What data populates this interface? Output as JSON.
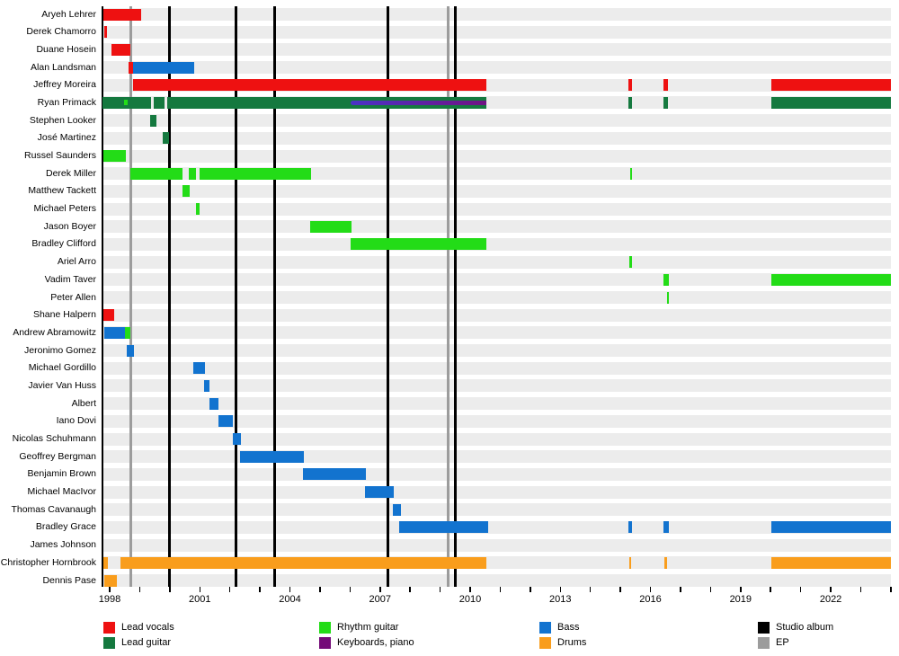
{
  "chart_data": {
    "type": "timeline",
    "title": "",
    "x_axis": {
      "labeled_years": [
        1998,
        2001,
        2004,
        2007,
        2010,
        2013,
        2016,
        2019,
        2022
      ],
      "minor_tick_start": 1998,
      "minor_tick_end": 2024,
      "label_every": 3,
      "range": [
        1997.75,
        2024.05
      ]
    },
    "event_lines": {
      "studio_albums": [
        2000.0,
        2002.19,
        2003.5,
        2007.25,
        2009.52
      ],
      "eps": [
        1998.69,
        2009.28
      ]
    },
    "members": [
      {
        "name": "Aryeh Lehrer",
        "bars": [
          {
            "role": "lead_vocals",
            "start": 1997.79,
            "end": 1999.05
          }
        ]
      },
      {
        "name": "Derek Chamorro",
        "bars": [
          {
            "role": "lead_vocals",
            "start": 1997.82,
            "end": 1997.92
          }
        ]
      },
      {
        "name": "Duane Hosein",
        "bars": [
          {
            "role": "lead_vocals",
            "start": 1998.06,
            "end": 1998.69
          }
        ]
      },
      {
        "name": "Alan Landsman",
        "bars": [
          {
            "role": "lead_vocals",
            "start": 1998.62,
            "end": 1998.78
          },
          {
            "role": "bass",
            "start": 1998.78,
            "end": 2000.81
          }
        ]
      },
      {
        "name": "Jeffrey Moreira",
        "bars": [
          {
            "role": "lead_vocals",
            "start": 1998.78,
            "end": 2010.54
          },
          {
            "role": "lead_vocals",
            "start": 2015.27,
            "end": 2015.39
          },
          {
            "role": "lead_vocals",
            "start": 2016.43,
            "end": 2016.58
          },
          {
            "role": "lead_vocals",
            "start": 2020.02,
            "end": 2024.02
          }
        ]
      },
      {
        "name": "Ryan Primack",
        "bars": [
          {
            "role": "lead_guitar",
            "start": 1997.76,
            "end": 1999.38
          },
          {
            "role": "rhythm_guitar",
            "start": 1998.48,
            "end": 1998.6,
            "overlay": "dot"
          },
          {
            "role": "lead_guitar",
            "start": 1999.47,
            "end": 1999.83
          },
          {
            "role": "lead_guitar",
            "start": 1999.92,
            "end": 2010.54
          },
          {
            "role": "keyboards",
            "start": 2006.02,
            "end": 2010.54,
            "overlay": "stripe"
          },
          {
            "role": "lead_guitar",
            "start": 2015.27,
            "end": 2015.39
          },
          {
            "role": "lead_guitar",
            "start": 2016.43,
            "end": 2016.58
          },
          {
            "role": "lead_guitar",
            "start": 2020.02,
            "end": 2024.02
          }
        ]
      },
      {
        "name": "Stephen Looker",
        "bars": [
          {
            "role": "lead_guitar",
            "start": 1999.35,
            "end": 1999.56
          }
        ]
      },
      {
        "name": "José Martinez",
        "bars": [
          {
            "role": "lead_guitar",
            "start": 1999.77,
            "end": 1999.97
          }
        ]
      },
      {
        "name": "Russel Saunders",
        "bars": [
          {
            "role": "rhythm_guitar",
            "start": 1997.79,
            "end": 1998.54
          }
        ]
      },
      {
        "name": "Derek Miller",
        "bars": [
          {
            "role": "rhythm_guitar",
            "start": 1998.69,
            "end": 2000.42
          },
          {
            "role": "rhythm_guitar",
            "start": 2000.63,
            "end": 2000.87
          },
          {
            "role": "rhythm_guitar",
            "start": 2000.99,
            "end": 2004.7
          },
          {
            "role": "rhythm_guitar",
            "start": 2015.33,
            "end": 2015.39
          }
        ]
      },
      {
        "name": "Matthew Tackett",
        "bars": [
          {
            "role": "rhythm_guitar",
            "start": 2000.42,
            "end": 2000.66
          }
        ]
      },
      {
        "name": "Michael Peters",
        "bars": [
          {
            "role": "rhythm_guitar",
            "start": 2000.87,
            "end": 2000.99
          }
        ]
      },
      {
        "name": "Jason Boyer",
        "bars": [
          {
            "role": "rhythm_guitar",
            "start": 2004.67,
            "end": 2006.05
          }
        ]
      },
      {
        "name": "Bradley Clifford",
        "bars": [
          {
            "role": "rhythm_guitar",
            "start": 2006.02,
            "end": 2010.54
          }
        ]
      },
      {
        "name": "Ariel Arro",
        "bars": [
          {
            "role": "rhythm_guitar",
            "start": 2015.3,
            "end": 2015.39
          }
        ]
      },
      {
        "name": "Vadim Taver",
        "bars": [
          {
            "role": "rhythm_guitar",
            "start": 2016.43,
            "end": 2016.61
          },
          {
            "role": "rhythm_guitar",
            "start": 2020.02,
            "end": 2024.02
          }
        ]
      },
      {
        "name": "Peter Allen",
        "bars": [
          {
            "role": "rhythm_guitar",
            "start": 2016.55,
            "end": 2016.6
          }
        ]
      },
      {
        "name": "Shane Halpern",
        "bars": [
          {
            "role": "lead_vocals",
            "start": 1997.79,
            "end": 1998.15
          }
        ]
      },
      {
        "name": "Andrew Abramowitz",
        "bars": [
          {
            "role": "bass",
            "start": 1997.82,
            "end": 1998.51
          },
          {
            "role": "rhythm_guitar",
            "start": 1998.51,
            "end": 1998.69
          }
        ]
      },
      {
        "name": "Jeronimo Gomez",
        "bars": [
          {
            "role": "bass",
            "start": 1998.57,
            "end": 1998.81
          }
        ]
      },
      {
        "name": "Michael Gordillo",
        "bars": [
          {
            "role": "bass",
            "start": 2000.78,
            "end": 2001.17
          }
        ]
      },
      {
        "name": "Javier Van Huss",
        "bars": [
          {
            "role": "bass",
            "start": 2001.14,
            "end": 2001.32
          }
        ]
      },
      {
        "name": "Albert",
        "bars": [
          {
            "role": "bass",
            "start": 2001.32,
            "end": 2001.62
          }
        ]
      },
      {
        "name": "Iano Dovi",
        "bars": [
          {
            "role": "bass",
            "start": 2001.62,
            "end": 2002.1
          }
        ]
      },
      {
        "name": "Nicolas Schuhmann",
        "bars": [
          {
            "role": "bass",
            "start": 2002.1,
            "end": 2002.37
          }
        ]
      },
      {
        "name": "Geoffrey Bergman",
        "bars": [
          {
            "role": "bass",
            "start": 2002.34,
            "end": 2004.46
          }
        ]
      },
      {
        "name": "Benjamin Brown",
        "bars": [
          {
            "role": "bass",
            "start": 2004.43,
            "end": 2006.53
          }
        ]
      },
      {
        "name": "Michael MacIvor",
        "bars": [
          {
            "role": "bass",
            "start": 2006.5,
            "end": 2007.46
          }
        ]
      },
      {
        "name": "Thomas Cavanaugh",
        "bars": [
          {
            "role": "bass",
            "start": 2007.43,
            "end": 2007.7
          }
        ]
      },
      {
        "name": "Bradley Grace",
        "bars": [
          {
            "role": "bass",
            "start": 2007.64,
            "end": 2010.6
          },
          {
            "role": "bass",
            "start": 2015.27,
            "end": 2015.39
          },
          {
            "role": "bass",
            "start": 2016.43,
            "end": 2016.61
          },
          {
            "role": "bass",
            "start": 2020.02,
            "end": 2024.02
          }
        ]
      },
      {
        "name": "James Johnson",
        "bars": []
      },
      {
        "name": "Christopher Hornbrook",
        "bars": [
          {
            "role": "drums",
            "start": 1997.79,
            "end": 1997.94
          },
          {
            "role": "drums",
            "start": 1998.36,
            "end": 2010.54
          },
          {
            "role": "drums",
            "start": 2015.3,
            "end": 2015.37
          },
          {
            "role": "drums",
            "start": 2016.46,
            "end": 2016.55
          },
          {
            "role": "drums",
            "start": 2020.02,
            "end": 2024.02
          }
        ]
      },
      {
        "name": "Dennis Pase",
        "bars": [
          {
            "role": "drums",
            "start": 1997.82,
            "end": 1998.24
          }
        ]
      }
    ],
    "legend": [
      {
        "label": "Lead vocals",
        "role": "lead_vocals",
        "col": 0,
        "row": 0
      },
      {
        "label": "Lead guitar",
        "role": "lead_guitar",
        "col": 0,
        "row": 1
      },
      {
        "label": "Rhythm guitar",
        "role": "rhythm_guitar",
        "col": 1,
        "row": 0
      },
      {
        "label": "Keyboards, piano",
        "role": "keyboards",
        "col": 1,
        "row": 1
      },
      {
        "label": "Bass",
        "role": "bass",
        "col": 2,
        "row": 0
      },
      {
        "label": "Drums",
        "role": "drums",
        "col": 2,
        "row": 1
      },
      {
        "label": "Studio album",
        "role": "studio_album",
        "col": 3,
        "row": 0
      },
      {
        "label": "EP",
        "role": "ep",
        "col": 3,
        "row": 1
      }
    ]
  },
  "colors": {
    "lead_vocals": "#EE1111",
    "lead_guitar": "#15793F",
    "rhythm_guitar": "#23DC17",
    "keyboards": "#740B78",
    "keyboards_stripe": [
      "#4A33C6",
      "#6F1383"
    ],
    "bass": "#1273CF",
    "drums": "#F99D1C",
    "studio_album": "#000000",
    "ep": "#9C9C9C",
    "row_band": "#ECECEC",
    "text": "#000000"
  }
}
